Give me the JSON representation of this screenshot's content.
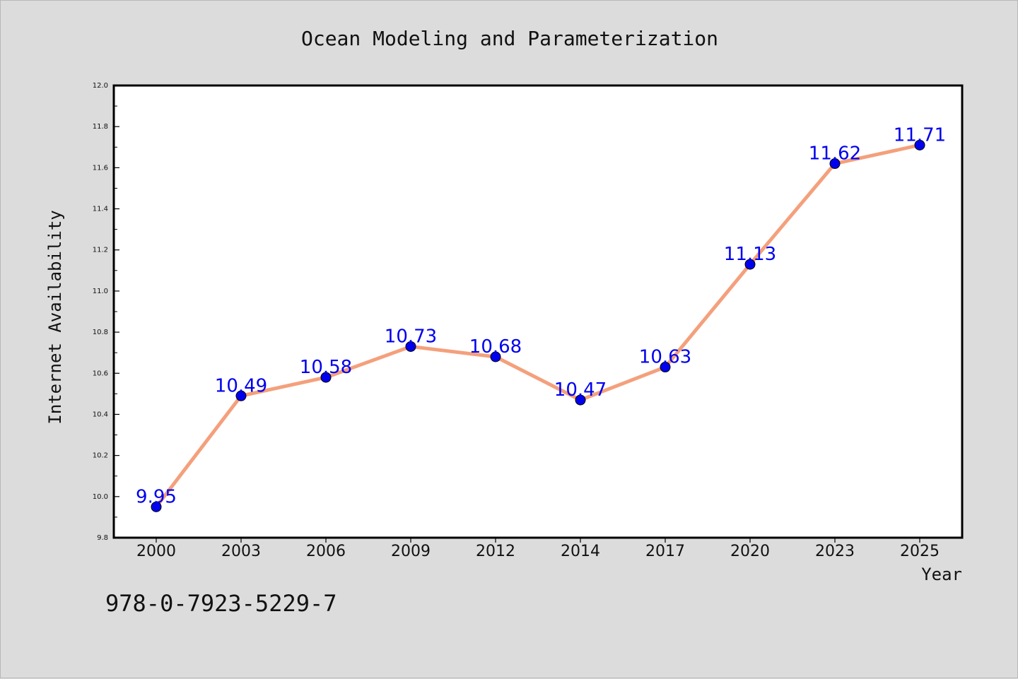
{
  "chart_data": {
    "type": "line",
    "title": "Ocean Modeling and Parameterization",
    "xlabel": "Year",
    "ylabel": "Internet Availability",
    "categories": [
      "2000",
      "2003",
      "2006",
      "2009",
      "2012",
      "2014",
      "2017",
      "2020",
      "2023",
      "2025"
    ],
    "series": [
      {
        "values": [
          9.95,
          10.49,
          10.58,
          10.73,
          10.68,
          10.47,
          10.63,
          11.13,
          11.62,
          11.71
        ],
        "data_labels": [
          "9.95",
          "10.49",
          "10.58",
          "10.73",
          "10.68",
          "10.47",
          "10.63",
          "11.13",
          "11.62",
          "11.71"
        ]
      }
    ],
    "ylim": [
      9.8,
      12.0
    ],
    "yticks": [
      "9.8",
      "10.0",
      "10.2",
      "10.4",
      "10.6",
      "10.8",
      "11.0",
      "11.2",
      "11.4",
      "11.6",
      "11.8",
      "12.0"
    ],
    "grid": false,
    "legend": "none",
    "colors": {
      "line": "#f4a07c",
      "marker": "#0000ee",
      "label": "#0000ee",
      "background": "#dcdcdc",
      "plot_background": "#ffffff"
    }
  },
  "footnote": "978-0-7923-5229-7"
}
